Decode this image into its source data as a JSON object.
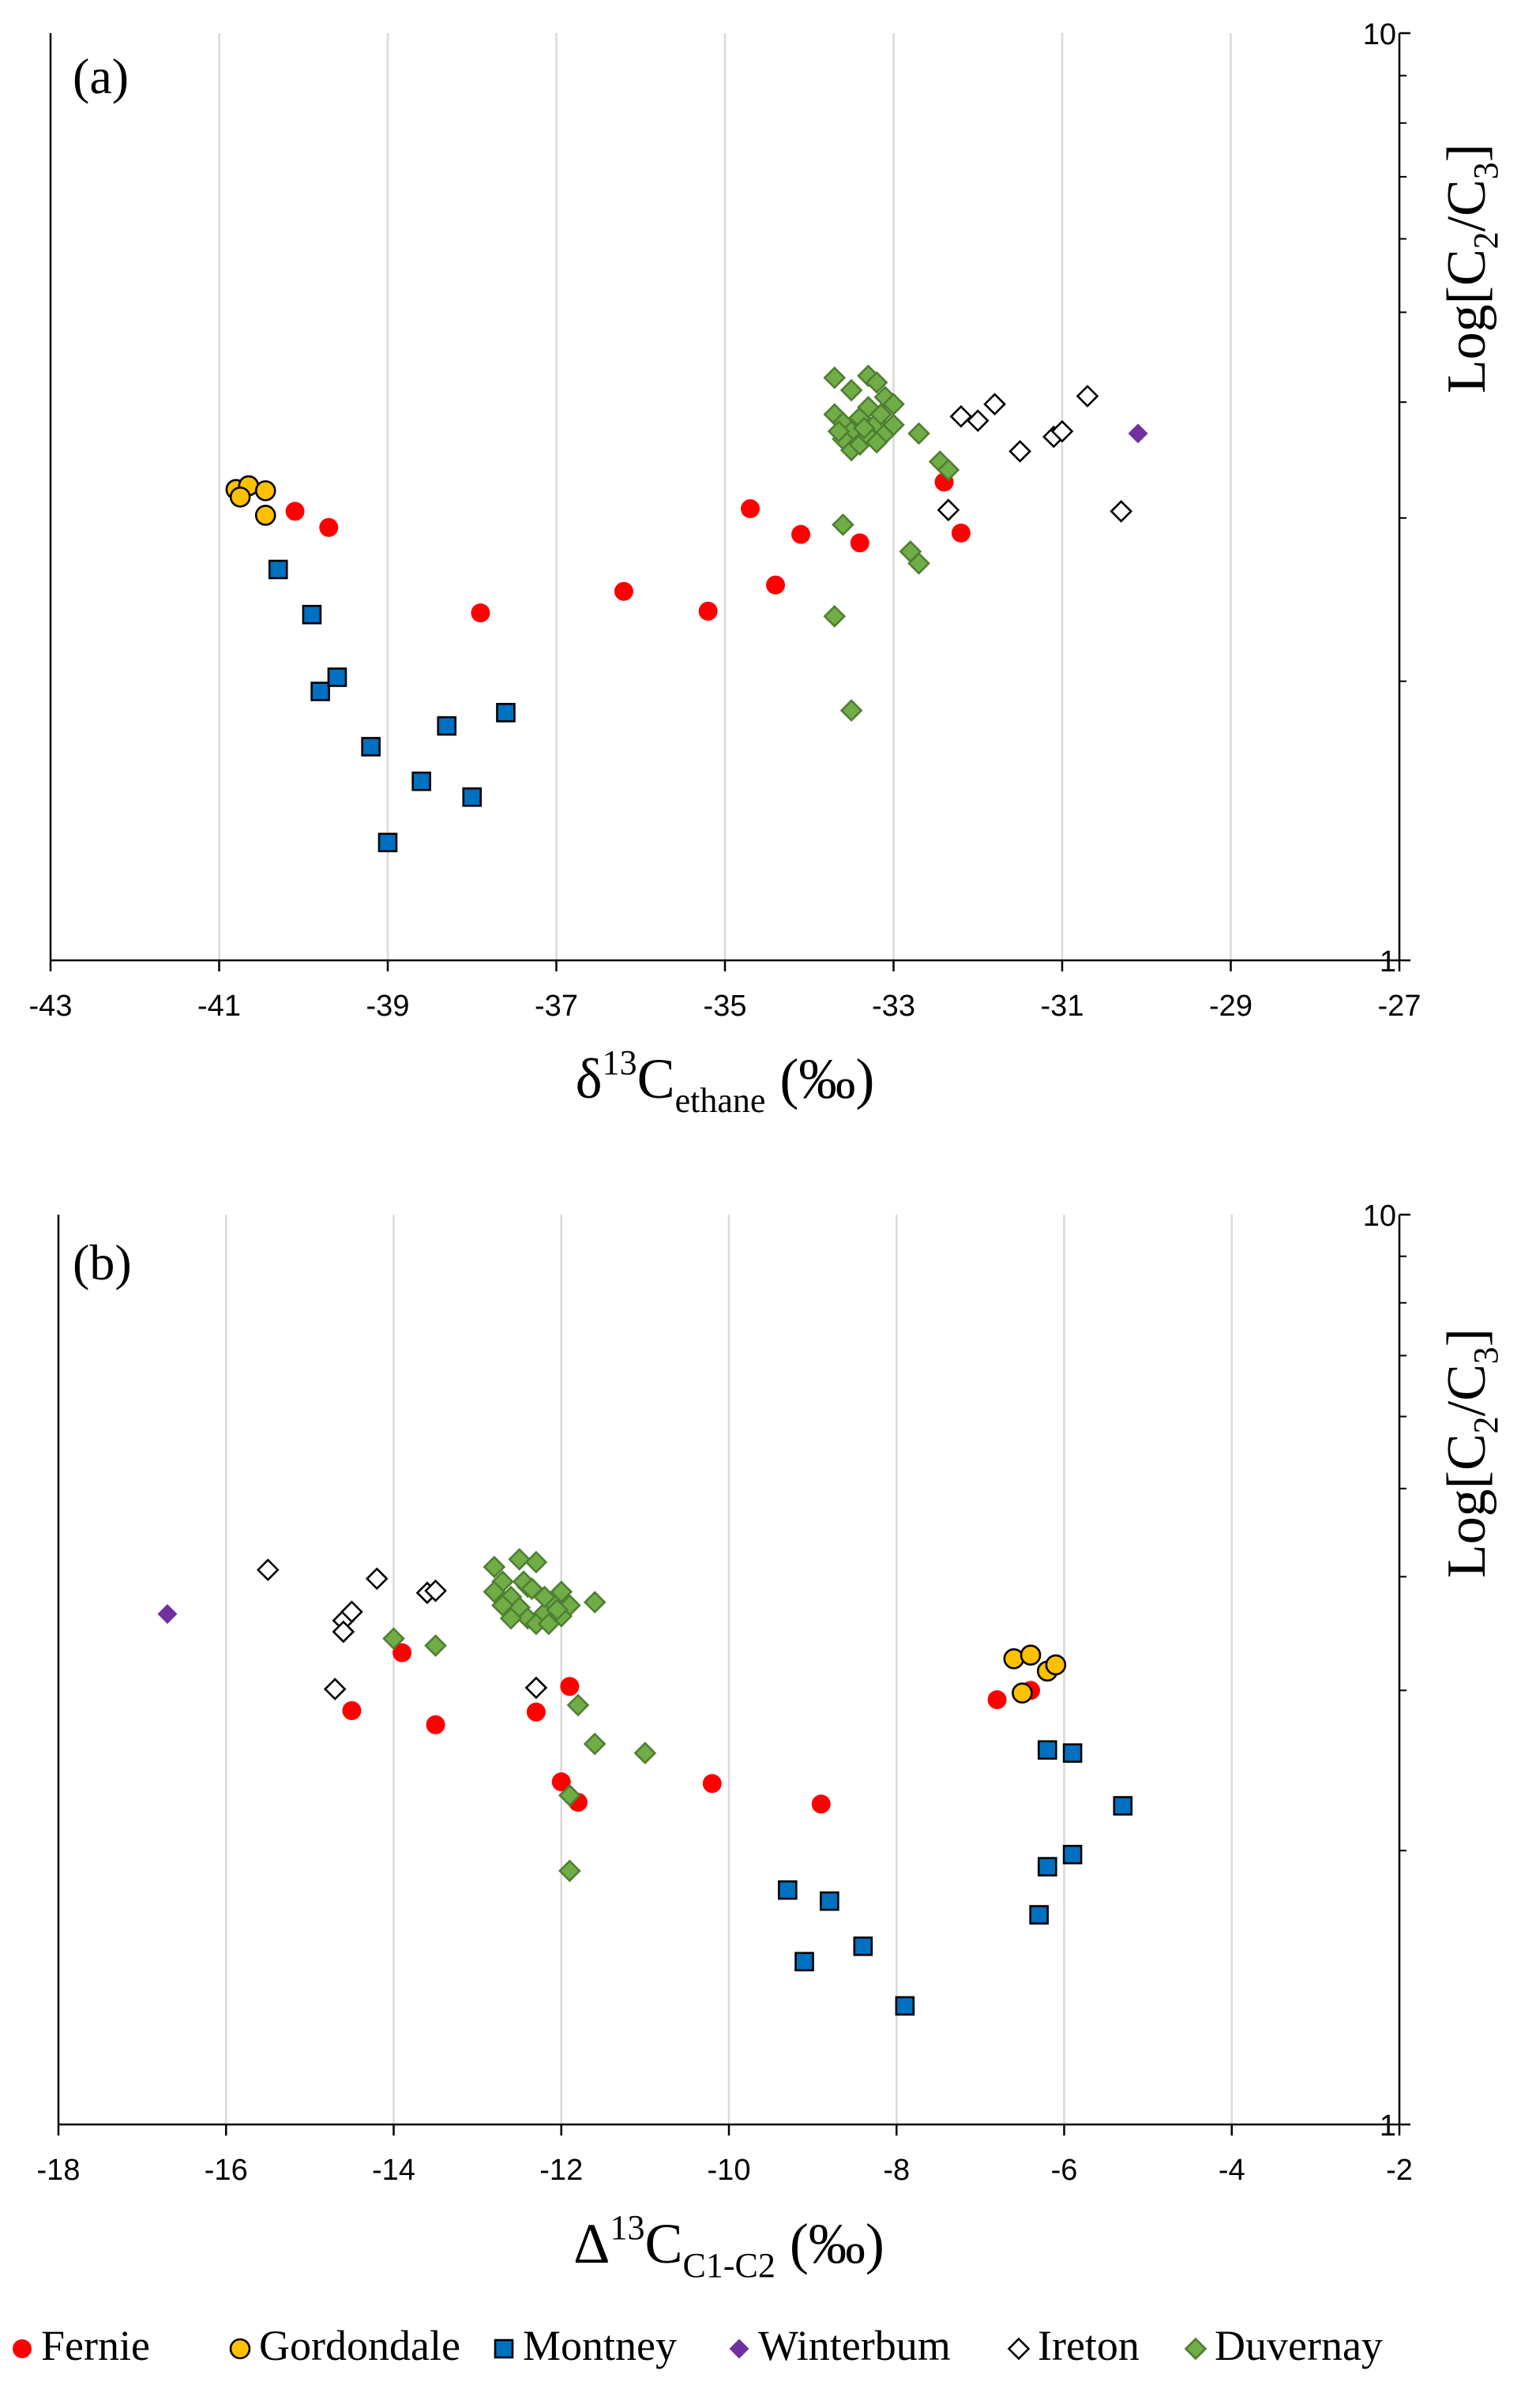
{
  "chart_data": [
    {
      "type": "scatter",
      "panel_label": "(a)",
      "xlabel": {
        "main": "δ",
        "sup": "13",
        "base": "C",
        "sub": "ethane",
        "unit": " (‰)"
      },
      "ylabel": {
        "prefix": "Log[C",
        "sub1": "2",
        "mid": "/C",
        "sub2": "3",
        "suffix": "]"
      },
      "xlim": [
        -43,
        -27
      ],
      "xticks": [
        -43,
        -41,
        -39,
        -37,
        -35,
        -33,
        -31,
        -29,
        -27
      ],
      "xtick_labels": [
        "-43",
        "-41",
        "-39",
        "-37",
        "-35",
        "-33",
        "-31",
        "-29",
        "-27"
      ],
      "ylim": [
        1,
        10
      ],
      "yscale": "log",
      "yticks": [
        1,
        10
      ],
      "ytick_labels": [
        "1",
        "10"
      ],
      "grid": "vertical",
      "series": [
        {
          "name": "Fernie",
          "points": [
            [
              -40.1,
              3.05
            ],
            [
              -39.7,
              2.93
            ],
            [
              -34.7,
              3.07
            ],
            [
              -34.1,
              2.88
            ],
            [
              -33.4,
              2.82
            ],
            [
              -32.4,
              3.28
            ],
            [
              -32.2,
              2.89
            ],
            [
              -36.2,
              2.5
            ],
            [
              -35.2,
              2.38
            ],
            [
              -34.4,
              2.54
            ],
            [
              -37.9,
              2.37
            ]
          ]
        },
        {
          "name": "Gordondale",
          "points": [
            [
              -40.8,
              3.22
            ],
            [
              -40.65,
              3.25
            ],
            [
              -40.75,
              3.16
            ],
            [
              -40.45,
              3.21
            ],
            [
              -40.45,
              3.02
            ]
          ]
        },
        {
          "name": "Montney",
          "points": [
            [
              -40.3,
              2.64
            ],
            [
              -39.9,
              2.36
            ],
            [
              -39.8,
              1.95
            ],
            [
              -39.6,
              2.02
            ],
            [
              -39.2,
              1.7
            ],
            [
              -38.6,
              1.56
            ],
            [
              -38.3,
              1.79
            ],
            [
              -38.0,
              1.5
            ],
            [
              -37.6,
              1.85
            ],
            [
              -39.0,
              1.34
            ]
          ]
        },
        {
          "name": "Winterbum",
          "points": [
            [
              -30.1,
              3.7
            ]
          ]
        },
        {
          "name": "Ireton",
          "points": [
            [
              -32.2,
              3.86
            ],
            [
              -32.0,
              3.82
            ],
            [
              -31.8,
              3.98
            ],
            [
              -31.5,
              3.54
            ],
            [
              -31.1,
              3.67
            ],
            [
              -31.0,
              3.72
            ],
            [
              -30.7,
              4.06
            ],
            [
              -30.3,
              3.05
            ],
            [
              -32.35,
              3.06
            ]
          ]
        },
        {
          "name": "Duvernay",
          "points": [
            [
              -33.7,
              4.25
            ],
            [
              -33.5,
              4.12
            ],
            [
              -33.3,
              4.27
            ],
            [
              -33.2,
              4.2
            ],
            [
              -33.1,
              4.05
            ],
            [
              -33.0,
              3.98
            ],
            [
              -33.7,
              3.88
            ],
            [
              -33.6,
              3.8
            ],
            [
              -33.5,
              3.72
            ],
            [
              -33.4,
              3.85
            ],
            [
              -33.3,
              3.95
            ],
            [
              -33.2,
              3.8
            ],
            [
              -33.1,
              3.7
            ],
            [
              -33.0,
              3.78
            ],
            [
              -33.6,
              3.65
            ],
            [
              -33.5,
              3.55
            ],
            [
              -33.4,
              3.6
            ],
            [
              -33.3,
              3.68
            ],
            [
              -33.2,
              3.62
            ],
            [
              -32.7,
              3.7
            ],
            [
              -33.65,
              3.72
            ],
            [
              -33.35,
              3.75
            ],
            [
              -33.15,
              3.88
            ],
            [
              -32.45,
              3.45
            ],
            [
              -32.35,
              3.38
            ],
            [
              -33.6,
              2.95
            ],
            [
              -32.8,
              2.76
            ],
            [
              -32.7,
              2.68
            ],
            [
              -33.7,
              2.35
            ],
            [
              -33.5,
              1.86
            ]
          ]
        }
      ]
    },
    {
      "type": "scatter",
      "panel_label": "(b)",
      "xlabel": {
        "main": "Δ",
        "sup": "13",
        "base": "C",
        "sub": "C1-C2",
        "unit": " (‰)"
      },
      "ylabel": {
        "prefix": "Log[C",
        "sub1": "2",
        "mid": "/C",
        "sub2": "3",
        "suffix": "]"
      },
      "xlim": [
        -18,
        -2
      ],
      "xticks": [
        -18,
        -16,
        -14,
        -12,
        -10,
        -8,
        -6,
        -4,
        -2
      ],
      "xtick_labels": [
        "-18",
        "-16",
        "-14",
        "-12",
        "-10",
        "-8",
        "-6",
        "-4",
        "-2"
      ],
      "ylim": [
        1,
        10
      ],
      "yscale": "log",
      "yticks": [
        1,
        10
      ],
      "ytick_labels": [
        "1",
        "10"
      ],
      "grid": "vertical",
      "series": [
        {
          "name": "Fernie",
          "points": [
            [
              -13.9,
              3.3
            ],
            [
              -14.5,
              2.85
            ],
            [
              -13.5,
              2.75
            ],
            [
              -12.3,
              2.84
            ],
            [
              -11.9,
              3.03
            ],
            [
              -12.0,
              2.38
            ],
            [
              -11.8,
              2.26
            ],
            [
              -10.2,
              2.37
            ],
            [
              -8.9,
              2.25
            ],
            [
              -6.8,
              2.93
            ],
            [
              -6.4,
              3.0
            ]
          ]
        },
        {
          "name": "Gordondale",
          "points": [
            [
              -6.6,
              3.25
            ],
            [
              -6.4,
              3.28
            ],
            [
              -6.2,
              3.15
            ],
            [
              -6.1,
              3.2
            ],
            [
              -6.5,
              2.98
            ]
          ]
        },
        {
          "name": "Montney",
          "points": [
            [
              -6.2,
              2.58
            ],
            [
              -5.9,
              2.56
            ],
            [
              -5.3,
              2.24
            ],
            [
              -6.2,
              1.92
            ],
            [
              -5.9,
              1.98
            ],
            [
              -6.3,
              1.7
            ],
            [
              -9.3,
              1.81
            ],
            [
              -8.8,
              1.76
            ],
            [
              -8.4,
              1.57
            ],
            [
              -9.1,
              1.51
            ],
            [
              -7.9,
              1.35
            ]
          ]
        },
        {
          "name": "Winterbum",
          "points": [
            [
              -16.7,
              3.64
            ]
          ]
        },
        {
          "name": "Ireton",
          "points": [
            [
              -15.5,
              4.07
            ],
            [
              -14.6,
              3.58
            ],
            [
              -14.5,
              3.66
            ],
            [
              -14.6,
              3.48
            ],
            [
              -14.2,
              3.98
            ],
            [
              -13.6,
              3.84
            ],
            [
              -13.5,
              3.86
            ],
            [
              -12.3,
              3.02
            ],
            [
              -14.7,
              3.01
            ]
          ]
        },
        {
          "name": "Duvernay",
          "points": [
            [
              -12.8,
              4.1
            ],
            [
              -12.7,
              3.95
            ],
            [
              -12.6,
              3.8
            ],
            [
              -12.5,
              3.7
            ],
            [
              -12.4,
              3.6
            ],
            [
              -12.3,
              3.55
            ],
            [
              -12.2,
              3.65
            ],
            [
              -12.1,
              3.75
            ],
            [
              -12.0,
              3.85
            ],
            [
              -11.9,
              3.72
            ],
            [
              -12.5,
              4.18
            ],
            [
              -12.3,
              4.15
            ],
            [
              -12.6,
              3.6
            ],
            [
              -12.4,
              3.9
            ],
            [
              -12.2,
              3.8
            ],
            [
              -12.0,
              3.62
            ],
            [
              -11.6,
              3.75
            ],
            [
              -12.45,
              3.95
            ],
            [
              -12.35,
              3.88
            ],
            [
              -12.15,
              3.55
            ],
            [
              -12.05,
              3.68
            ],
            [
              -12.7,
              3.72
            ],
            [
              -12.8,
              3.85
            ],
            [
              -14.0,
              3.42
            ],
            [
              -13.5,
              3.36
            ],
            [
              -11.8,
              2.89
            ],
            [
              -11.6,
              2.62
            ],
            [
              -11.0,
              2.56
            ],
            [
              -11.9,
              2.3
            ],
            [
              -11.9,
              1.9
            ]
          ]
        }
      ]
    }
  ],
  "legend": [
    {
      "name": "Fernie",
      "marker": "circle",
      "fill": "#ff0000",
      "stroke": "none"
    },
    {
      "name": "Gordondale",
      "marker": "circle",
      "fill": "#ffc000",
      "stroke": "#000000"
    },
    {
      "name": "Montney",
      "marker": "square",
      "fill": "#0070c0",
      "stroke": "#000000"
    },
    {
      "name": "Winterbum",
      "marker": "diamond",
      "fill": "#7030a0",
      "stroke": "none"
    },
    {
      "name": "Ireton",
      "marker": "diamond",
      "fill": "#ffffff",
      "stroke": "#000000"
    },
    {
      "name": "Duvernay",
      "marker": "diamond",
      "fill": "#70ad47",
      "stroke": "#507e32"
    }
  ]
}
